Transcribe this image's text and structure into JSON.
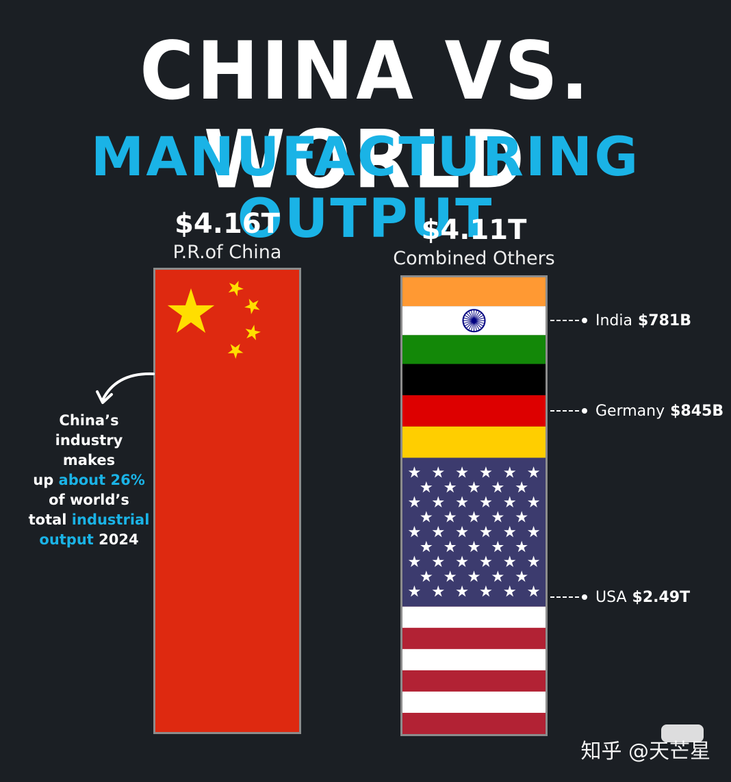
{
  "title": "CHINA VS. WORLD",
  "subtitle": "MANUFACTURING OUTPUT",
  "chart_data": {
    "type": "bar",
    "title": "CHINA VS. WORLD",
    "subtitle": "MANUFACTURING OUTPUT",
    "categories": [
      "P.R.of China",
      "Combined Others"
    ],
    "series": [
      {
        "name": "",
        "values": [
          4.16,
          4.11
        ]
      }
    ],
    "value_labels": [
      "$4.16T",
      "$4.11T"
    ],
    "stack_components": [
      {
        "name": "India",
        "label": "India",
        "value_label": "$781B",
        "value": 0.781
      },
      {
        "name": "Germany",
        "label": "Germany",
        "value_label": "$845B",
        "value": 0.845
      },
      {
        "name": "USA",
        "label": "USA",
        "value_label": "$2.49T",
        "value": 2.49
      }
    ],
    "unit": "USD trillions",
    "grid": false,
    "legend": "none"
  },
  "annotation": {
    "line1": "China’s",
    "line2": "industry makes",
    "line3_a": "up ",
    "line3_b": "about 26%",
    "line4": "of world’s",
    "line5_a": "total ",
    "line5_b": "industrial",
    "line6_a": "output",
    "line6_b": " 2024"
  },
  "watermark": "知乎 @天芒星",
  "colors": {
    "background": "#1b1f24",
    "accent": "#1ab3e6",
    "china_red": "#de2910",
    "china_star": "#ffde00",
    "india_saffron": "#ff9933",
    "india_green": "#138808",
    "chakra": "#000080",
    "germany_black": "#000000",
    "germany_red": "#dd0000",
    "germany_gold": "#ffce00",
    "usa_blue": "#3c3b6e",
    "usa_red": "#b22234"
  }
}
